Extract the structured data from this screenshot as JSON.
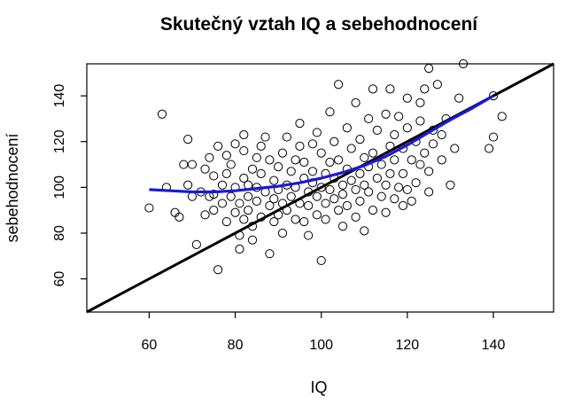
{
  "chart_data": {
    "type": "scatter",
    "title": "Skutečný vztah IQ a sebehodnocení",
    "xlabel": "IQ",
    "ylabel": "sebehodnocení",
    "xlim": [
      45.5,
      154
    ],
    "ylim": [
      45.5,
      154
    ],
    "xticks": [
      60,
      80,
      100,
      120,
      140
    ],
    "yticks": [
      60,
      80,
      100,
      120,
      140
    ],
    "grid": false,
    "series": [
      {
        "kind": "points",
        "color": "#000000",
        "points": [
          [
            60,
            91
          ],
          [
            63,
            132
          ],
          [
            64,
            100
          ],
          [
            66,
            89
          ],
          [
            67,
            87
          ],
          [
            68,
            110
          ],
          [
            69,
            101
          ],
          [
            69,
            121
          ],
          [
            70,
            96
          ],
          [
            70,
            110
          ],
          [
            71,
            75
          ],
          [
            72,
            98
          ],
          [
            73,
            88
          ],
          [
            73,
            108
          ],
          [
            74,
            113
          ],
          [
            74,
            96
          ],
          [
            75,
            105
          ],
          [
            75,
            97
          ],
          [
            75,
            90
          ],
          [
            76,
            64
          ],
          [
            76,
            118
          ],
          [
            77,
            101
          ],
          [
            77,
            93
          ],
          [
            78,
            106
          ],
          [
            78,
            114
          ],
          [
            78,
            85
          ],
          [
            79,
            110
          ],
          [
            79,
            96
          ],
          [
            80,
            89
          ],
          [
            80,
            100
          ],
          [
            80,
            119
          ],
          [
            81,
            93
          ],
          [
            81,
            79
          ],
          [
            81,
            73
          ],
          [
            82,
            116
          ],
          [
            82,
            123
          ],
          [
            82,
            104
          ],
          [
            82,
            86
          ],
          [
            83,
            96
          ],
          [
            83,
            101
          ],
          [
            83,
            90
          ],
          [
            84,
            108
          ],
          [
            84,
            83
          ],
          [
            84,
            77
          ],
          [
            85,
            100
          ],
          [
            85,
            113
          ],
          [
            85,
            94
          ],
          [
            86,
            118
          ],
          [
            86,
            87
          ],
          [
            86,
            106
          ],
          [
            87,
            122
          ],
          [
            87,
            98
          ],
          [
            88,
            71
          ],
          [
            88,
            92
          ],
          [
            88,
            112
          ],
          [
            89,
            103
          ],
          [
            89,
            95
          ],
          [
            89,
            85
          ],
          [
            90,
            88
          ],
          [
            90,
            109
          ],
          [
            90,
            99
          ],
          [
            91,
            115
          ],
          [
            91,
            93
          ],
          [
            91,
            80
          ],
          [
            92,
            101
          ],
          [
            92,
            122
          ],
          [
            92,
            90
          ],
          [
            93,
            107
          ],
          [
            93,
            96
          ],
          [
            94,
            86
          ],
          [
            94,
            112
          ],
          [
            94,
            100
          ],
          [
            95,
            93
          ],
          [
            95,
            118
          ],
          [
            95,
            128
          ],
          [
            96,
            104
          ],
          [
            96,
            85
          ],
          [
            96,
            111
          ],
          [
            97,
            98
          ],
          [
            97,
            92
          ],
          [
            97,
            79
          ],
          [
            98,
            119
          ],
          [
            98,
            102
          ],
          [
            98,
            107
          ],
          [
            99,
            96
          ],
          [
            99,
            88
          ],
          [
            99,
            124
          ],
          [
            100,
            115
          ],
          [
            100,
            100
          ],
          [
            100,
            68
          ],
          [
            101,
            93
          ],
          [
            101,
            106
          ],
          [
            101,
            86
          ],
          [
            102,
            111
          ],
          [
            102,
            99
          ],
          [
            102,
            133
          ],
          [
            103,
            120
          ],
          [
            103,
            104
          ],
          [
            103,
            95
          ],
          [
            104,
            90
          ],
          [
            104,
            145
          ],
          [
            104,
            112
          ],
          [
            105,
            101
          ],
          [
            105,
            97
          ],
          [
            105,
            83
          ],
          [
            106,
            126
          ],
          [
            106,
            108
          ],
          [
            106,
            92
          ],
          [
            107,
            117
          ],
          [
            107,
            103
          ],
          [
            108,
            99
          ],
          [
            108,
            87
          ],
          [
            108,
            137
          ],
          [
            109,
            121
          ],
          [
            109,
            106
          ],
          [
            109,
            94
          ],
          [
            110,
            113
          ],
          [
            110,
            101
          ],
          [
            110,
            81
          ],
          [
            111,
            130
          ],
          [
            111,
            98
          ],
          [
            111,
            109
          ],
          [
            112,
            143
          ],
          [
            112,
            90
          ],
          [
            112,
            115
          ],
          [
            113,
            104
          ],
          [
            113,
            125
          ],
          [
            114,
            96
          ],
          [
            114,
            110
          ],
          [
            115,
            132
          ],
          [
            115,
            101
          ],
          [
            115,
            89
          ],
          [
            116,
            118
          ],
          [
            116,
            143
          ],
          [
            116,
            106
          ],
          [
            117,
            95
          ],
          [
            117,
            123
          ],
          [
            117,
            112
          ],
          [
            118,
            131
          ],
          [
            118,
            100
          ],
          [
            119,
            117
          ],
          [
            119,
            92
          ],
          [
            119,
            106
          ],
          [
            120,
            126
          ],
          [
            120,
            99
          ],
          [
            120,
            139
          ],
          [
            121,
            112
          ],
          [
            121,
            94
          ],
          [
            122,
            120
          ],
          [
            122,
            102
          ],
          [
            123,
            137
          ],
          [
            123,
            129
          ],
          [
            123,
            110
          ],
          [
            124,
            143
          ],
          [
            124,
            115
          ],
          [
            125,
            152
          ],
          [
            125,
            98
          ],
          [
            125,
            107
          ],
          [
            126,
            125
          ],
          [
            126,
            119
          ],
          [
            127,
            145
          ],
          [
            128,
            112
          ],
          [
            128,
            123
          ],
          [
            129,
            130
          ],
          [
            130,
            101
          ],
          [
            131,
            117
          ],
          [
            132,
            139
          ],
          [
            133,
            154
          ],
          [
            139,
            117
          ],
          [
            140,
            122
          ],
          [
            140,
            140
          ],
          [
            142,
            131
          ]
        ]
      },
      {
        "kind": "line",
        "label": "diagonal",
        "color": "#000000",
        "points": [
          [
            45.5,
            45.5
          ],
          [
            154,
            154
          ]
        ]
      },
      {
        "kind": "curve",
        "label": "smooth",
        "color": "#1a1ad6",
        "points": [
          [
            60,
            99
          ],
          [
            65,
            98.5
          ],
          [
            70,
            98
          ],
          [
            75,
            98
          ],
          [
            80,
            98.5
          ],
          [
            85,
            99.5
          ],
          [
            90,
            100.5
          ],
          [
            95,
            102
          ],
          [
            100,
            104
          ],
          [
            105,
            106.5
          ],
          [
            110,
            109.5
          ],
          [
            115,
            113.5
          ],
          [
            120,
            118.5
          ],
          [
            125,
            124
          ],
          [
            130,
            129.5
          ],
          [
            135,
            134.5
          ],
          [
            140,
            140
          ]
        ]
      }
    ]
  }
}
